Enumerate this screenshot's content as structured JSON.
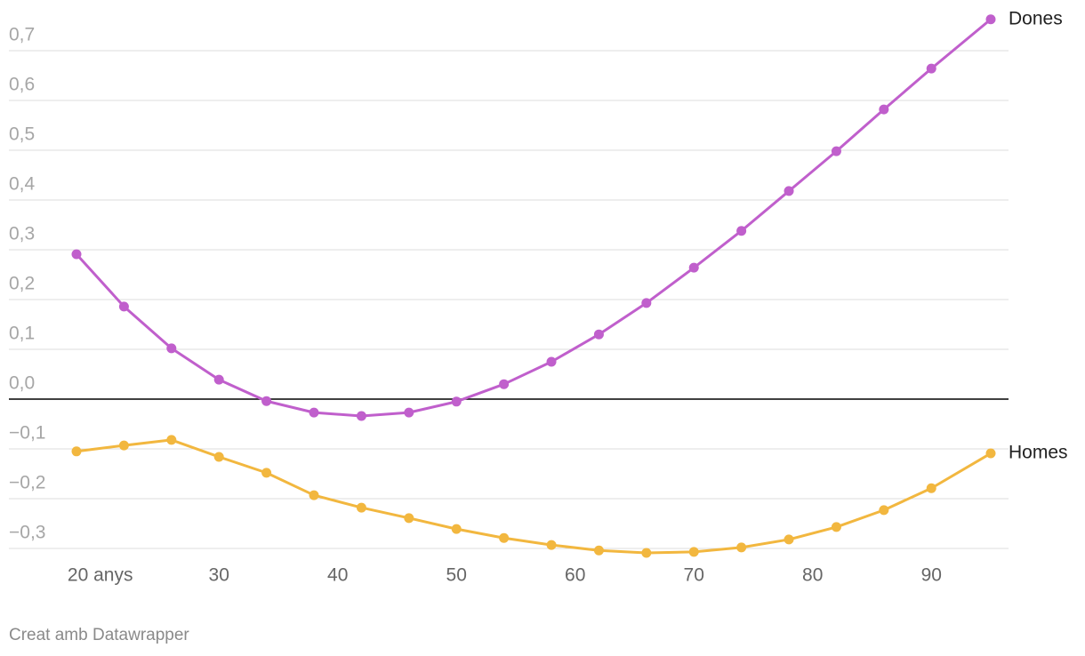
{
  "chart_data": {
    "type": "line",
    "x": [
      18,
      22,
      26,
      30,
      34,
      38,
      42,
      46,
      50,
      54,
      58,
      62,
      66,
      70,
      74,
      78,
      82,
      86,
      90,
      95
    ],
    "series": [
      {
        "name": "Dones",
        "color": "#c05fcc",
        "values": [
          0.291,
          0.186,
          0.102,
          0.039,
          -0.004,
          -0.027,
          -0.034,
          -0.027,
          -0.005,
          0.03,
          0.075,
          0.13,
          0.193,
          0.264,
          0.338,
          0.418,
          0.498,
          0.582,
          0.664,
          0.763
        ]
      },
      {
        "name": "Homes",
        "color": "#f2b73f",
        "values": [
          -0.105,
          -0.093,
          -0.082,
          -0.116,
          -0.148,
          -0.193,
          -0.218,
          -0.239,
          -0.261,
          -0.279,
          -0.293,
          -0.304,
          -0.309,
          -0.307,
          -0.298,
          -0.282,
          -0.257,
          -0.223,
          -0.179,
          -0.109
        ]
      }
    ],
    "xlim": [
      18,
      95
    ],
    "xticks": [
      {
        "value": 20,
        "label": "20 anys"
      },
      30,
      40,
      50,
      60,
      70,
      80,
      90
    ],
    "ylim": [
      -0.3,
      0.7
    ],
    "yticks": [
      {
        "value": 0.7,
        "label": "0,7"
      },
      {
        "value": 0.6,
        "label": "0,6"
      },
      {
        "value": 0.5,
        "label": "0,5"
      },
      {
        "value": 0.4,
        "label": "0,4"
      },
      {
        "value": 0.3,
        "label": "0,3"
      },
      {
        "value": 0.2,
        "label": "0,2"
      },
      {
        "value": 0.1,
        "label": "0,1"
      },
      {
        "value": 0,
        "label": "0,0"
      },
      {
        "value": -0.1,
        "label": "−0,1"
      },
      {
        "value": -0.2,
        "label": "−0,2"
      },
      {
        "value": -0.3,
        "label": "−0,3"
      }
    ],
    "grid": true,
    "source": "Creat amb Datawrapper"
  }
}
